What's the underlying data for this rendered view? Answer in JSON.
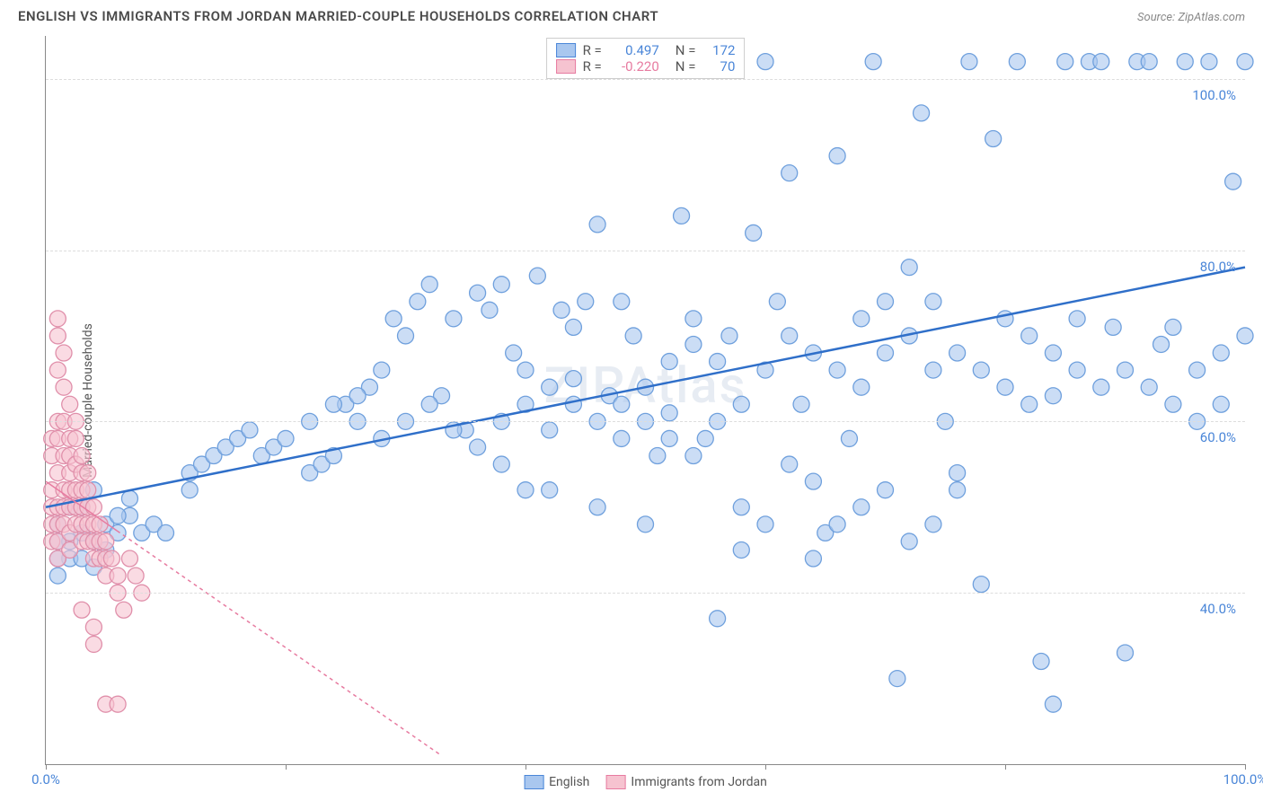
{
  "header": {
    "title": "ENGLISH VS IMMIGRANTS FROM JORDAN MARRIED-COUPLE HOUSEHOLDS CORRELATION CHART",
    "source_prefix": "Source: ",
    "source": "ZipAtlas.com"
  },
  "ylabel": "Married-couple Households",
  "watermark": "ZIPAtlas",
  "legend_top": {
    "rows": [
      {
        "swatch_fill": "#a9c7ef",
        "swatch_border": "#4a86d8",
        "r_label": "R =",
        "r_value": "0.497",
        "r_color": "#4a86d8",
        "n_label": "N =",
        "n_value": "172",
        "n_color": "#4a86d8"
      },
      {
        "swatch_fill": "#f6c3d0",
        "swatch_border": "#e77ba0",
        "r_label": "R =",
        "r_value": "-0.220",
        "r_color": "#e77ba0",
        "n_label": "N =",
        "n_value": "70",
        "n_color": "#4a86d8"
      }
    ]
  },
  "legend_bottom": {
    "items": [
      {
        "swatch_fill": "#a9c7ef",
        "swatch_border": "#4a86d8",
        "label": "English"
      },
      {
        "swatch_fill": "#f6c3d0",
        "swatch_border": "#e77ba0",
        "label": "Immigrants from Jordan"
      }
    ]
  },
  "chart": {
    "type": "scatter",
    "xlim": [
      0,
      100
    ],
    "ylim": [
      20,
      105
    ],
    "x_ticks": [
      0,
      20,
      40,
      60,
      80,
      100
    ],
    "x_tick_labels": {
      "0": "0.0%",
      "100": "100.0%"
    },
    "x_tick_label_color": "#4a86d8",
    "y_gridlines": [
      40,
      60,
      80,
      100
    ],
    "y_tick_labels": {
      "40": "40.0%",
      "60": "60.0%",
      "80": "80.0%",
      "100": "100.0%"
    },
    "y_tick_label_color": "#4a86d8",
    "grid_color": "#dddddd",
    "background_color": "#ffffff",
    "marker_radius": 9,
    "marker_stroke_width": 1.3,
    "series": [
      {
        "name": "English",
        "fill": "rgba(169,199,239,0.6)",
        "stroke": "#6fa0dd",
        "trend": {
          "x1": 0,
          "y1": 50,
          "x2": 100,
          "y2": 78,
          "stroke": "#2f6fc9",
          "width": 2.5,
          "dash": "none"
        },
        "points": [
          [
            1,
            42
          ],
          [
            4,
            46
          ],
          [
            4,
            43
          ],
          [
            3,
            47
          ],
          [
            5,
            48
          ],
          [
            6,
            47
          ],
          [
            7,
            49
          ],
          [
            8,
            47
          ],
          [
            9,
            48
          ],
          [
            10,
            47
          ],
          [
            12,
            52
          ],
          [
            12,
            54
          ],
          [
            13,
            55
          ],
          [
            14,
            56
          ],
          [
            15,
            57
          ],
          [
            16,
            58
          ],
          [
            17,
            59
          ],
          [
            18,
            56
          ],
          [
            19,
            57
          ],
          [
            20,
            58
          ],
          [
            22,
            54
          ],
          [
            23,
            55
          ],
          [
            24,
            56
          ],
          [
            25,
            62
          ],
          [
            26,
            60
          ],
          [
            27,
            64
          ],
          [
            28,
            66
          ],
          [
            29,
            72
          ],
          [
            30,
            70
          ],
          [
            31,
            74
          ],
          [
            32,
            76
          ],
          [
            33,
            63
          ],
          [
            34,
            72
          ],
          [
            35,
            59
          ],
          [
            36,
            75
          ],
          [
            37,
            73
          ],
          [
            38,
            76
          ],
          [
            39,
            68
          ],
          [
            40,
            66
          ],
          [
            41,
            77
          ],
          [
            42,
            52
          ],
          [
            43,
            73
          ],
          [
            44,
            71
          ],
          [
            45,
            74
          ],
          [
            46,
            83
          ],
          [
            47,
            63
          ],
          [
            48,
            74
          ],
          [
            49,
            70
          ],
          [
            50,
            60
          ],
          [
            51,
            56
          ],
          [
            52,
            67
          ],
          [
            53,
            84
          ],
          [
            54,
            69
          ],
          [
            55,
            58
          ],
          [
            56,
            37
          ],
          [
            57,
            70
          ],
          [
            58,
            50
          ],
          [
            59,
            82
          ],
          [
            60,
            102
          ],
          [
            61,
            74
          ],
          [
            62,
            89
          ],
          [
            63,
            62
          ],
          [
            64,
            53
          ],
          [
            65,
            47
          ],
          [
            66,
            91
          ],
          [
            67,
            58
          ],
          [
            68,
            72
          ],
          [
            69,
            102
          ],
          [
            70,
            74
          ],
          [
            71,
            30
          ],
          [
            72,
            78
          ],
          [
            73,
            96
          ],
          [
            74,
            74
          ],
          [
            75,
            60
          ],
          [
            76,
            54
          ],
          [
            77,
            102
          ],
          [
            78,
            41
          ],
          [
            79,
            93
          ],
          [
            80,
            72
          ],
          [
            81,
            102
          ],
          [
            82,
            70
          ],
          [
            83,
            32
          ],
          [
            84,
            63
          ],
          [
            84,
            27
          ],
          [
            85,
            102
          ],
          [
            86,
            72
          ],
          [
            87,
            102
          ],
          [
            88,
            102
          ],
          [
            89,
            71
          ],
          [
            90,
            33
          ],
          [
            91,
            102
          ],
          [
            92,
            102
          ],
          [
            93,
            69
          ],
          [
            94,
            71
          ],
          [
            95,
            102
          ],
          [
            96,
            60
          ],
          [
            97,
            102
          ],
          [
            98,
            62
          ],
          [
            99,
            88
          ],
          [
            100,
            102
          ],
          [
            38,
            55
          ],
          [
            40,
            52
          ],
          [
            42,
            59
          ],
          [
            44,
            65
          ],
          [
            46,
            50
          ],
          [
            48,
            58
          ],
          [
            50,
            48
          ],
          [
            52,
            61
          ],
          [
            54,
            72
          ],
          [
            56,
            67
          ],
          [
            58,
            45
          ],
          [
            60,
            48
          ],
          [
            62,
            55
          ],
          [
            64,
            44
          ],
          [
            66,
            48
          ],
          [
            68,
            50
          ],
          [
            70,
            52
          ],
          [
            72,
            46
          ],
          [
            74,
            48
          ],
          [
            76,
            52
          ],
          [
            22,
            60
          ],
          [
            24,
            62
          ],
          [
            26,
            63
          ],
          [
            28,
            58
          ],
          [
            30,
            60
          ],
          [
            32,
            62
          ],
          [
            34,
            59
          ],
          [
            36,
            57
          ],
          [
            38,
            60
          ],
          [
            40,
            62
          ],
          [
            42,
            64
          ],
          [
            44,
            62
          ],
          [
            46,
            60
          ],
          [
            48,
            62
          ],
          [
            50,
            64
          ],
          [
            52,
            58
          ],
          [
            54,
            56
          ],
          [
            56,
            60
          ],
          [
            58,
            62
          ],
          [
            60,
            66
          ],
          [
            62,
            70
          ],
          [
            64,
            68
          ],
          [
            66,
            66
          ],
          [
            68,
            64
          ],
          [
            70,
            68
          ],
          [
            72,
            70
          ],
          [
            74,
            66
          ],
          [
            76,
            68
          ],
          [
            78,
            66
          ],
          [
            80,
            64
          ],
          [
            82,
            62
          ],
          [
            84,
            68
          ],
          [
            86,
            66
          ],
          [
            88,
            64
          ],
          [
            90,
            66
          ],
          [
            92,
            64
          ],
          [
            94,
            62
          ],
          [
            96,
            66
          ],
          [
            98,
            68
          ],
          [
            100,
            70
          ],
          [
            2,
            44
          ],
          [
            3,
            50
          ],
          [
            4,
            52
          ],
          [
            5,
            45
          ],
          [
            6,
            49
          ],
          [
            7,
            51
          ],
          [
            1,
            48
          ],
          [
            2,
            50
          ],
          [
            1,
            44
          ],
          [
            2,
            46
          ],
          [
            3,
            44
          ],
          [
            1,
            46
          ]
        ]
      },
      {
        "name": "Immigrants from Jordan",
        "fill": "rgba(246,195,208,0.6)",
        "stroke": "#e08faa",
        "trend": {
          "x1": 0,
          "y1": 53,
          "x2": 33,
          "y2": 21,
          "stroke": "#e77ba0",
          "width": 1.5,
          "dash": "4,4",
          "solid_portion": 0.18
        },
        "points": [
          [
            0.5,
            56
          ],
          [
            0.5,
            50
          ],
          [
            0.5,
            48
          ],
          [
            0.5,
            52
          ],
          [
            0.5,
            46
          ],
          [
            0.5,
            58
          ],
          [
            1,
            70
          ],
          [
            1,
            72
          ],
          [
            1,
            66
          ],
          [
            1,
            60
          ],
          [
            1,
            58
          ],
          [
            1,
            54
          ],
          [
            1,
            50
          ],
          [
            1,
            48
          ],
          [
            1,
            46
          ],
          [
            1,
            44
          ],
          [
            1.5,
            68
          ],
          [
            1.5,
            64
          ],
          [
            1.5,
            60
          ],
          [
            1.5,
            56
          ],
          [
            1.5,
            52
          ],
          [
            1.5,
            50
          ],
          [
            1.5,
            48
          ],
          [
            2,
            62
          ],
          [
            2,
            58
          ],
          [
            2,
            56
          ],
          [
            2,
            54
          ],
          [
            2,
            52
          ],
          [
            2,
            50
          ],
          [
            2,
            47
          ],
          [
            2,
            45
          ],
          [
            2.5,
            60
          ],
          [
            2.5,
            58
          ],
          [
            2.5,
            55
          ],
          [
            2.5,
            52
          ],
          [
            2.5,
            50
          ],
          [
            2.5,
            48
          ],
          [
            3,
            56
          ],
          [
            3,
            54
          ],
          [
            3,
            52
          ],
          [
            3,
            50
          ],
          [
            3,
            48
          ],
          [
            3,
            46
          ],
          [
            3,
            38
          ],
          [
            3.5,
            54
          ],
          [
            3.5,
            52
          ],
          [
            3.5,
            50
          ],
          [
            3.5,
            48
          ],
          [
            3.5,
            46
          ],
          [
            4,
            50
          ],
          [
            4,
            48
          ],
          [
            4,
            46
          ],
          [
            4,
            44
          ],
          [
            4,
            36
          ],
          [
            4.5,
            48
          ],
          [
            4.5,
            46
          ],
          [
            4.5,
            44
          ],
          [
            5,
            46
          ],
          [
            5,
            44
          ],
          [
            5,
            42
          ],
          [
            5.5,
            44
          ],
          [
            6,
            42
          ],
          [
            6,
            40
          ],
          [
            6.5,
            38
          ],
          [
            7,
            44
          ],
          [
            7.5,
            42
          ],
          [
            8,
            40
          ],
          [
            5,
            27
          ],
          [
            6,
            27
          ],
          [
            4,
            34
          ]
        ]
      }
    ]
  }
}
